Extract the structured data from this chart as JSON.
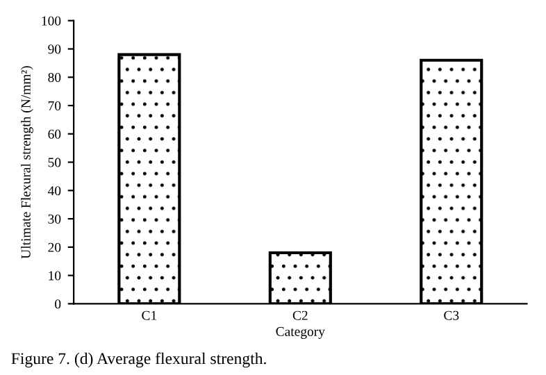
{
  "chart_data": {
    "type": "bar",
    "categories": [
      "C1",
      "C2",
      "C3"
    ],
    "values": [
      88,
      18,
      86
    ],
    "color": "#000000",
    "xlabel": "Category",
    "ylabel": "Ultimate Flexural strength (N/mm²)",
    "ylim": [
      0,
      100
    ],
    "yticks": [
      0,
      10,
      20,
      30,
      40,
      50,
      60,
      70,
      80,
      90,
      100
    ],
    "grid": false,
    "annotations": [
      "Figure 7. (d) Average flexural strength."
    ]
  }
}
